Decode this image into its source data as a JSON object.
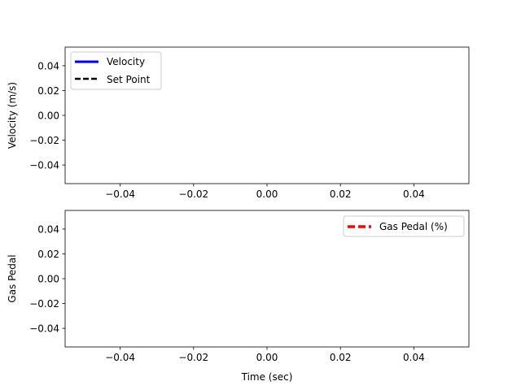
{
  "chart_data": [
    {
      "type": "line",
      "title": "",
      "xlabel": "",
      "ylabel": "Velocity (m/s)",
      "xlim": [
        -0.055,
        0.055
      ],
      "ylim": [
        -0.055,
        0.055
      ],
      "xticks": [
        -0.04,
        -0.02,
        0.0,
        0.02,
        0.04
      ],
      "yticks": [
        -0.04,
        -0.02,
        0.0,
        0.02,
        0.04
      ],
      "xtick_labels": [
        "−0.04",
        "−0.02",
        "0.00",
        "0.02",
        "0.04"
      ],
      "ytick_labels": [
        "−0.04",
        "−0.02",
        "0.00",
        "0.02",
        "0.04"
      ],
      "grid": false,
      "legend_position": "upper-left",
      "series": [
        {
          "name": "Velocity",
          "x": [],
          "y": [],
          "color": "#0000ff",
          "linestyle": "solid"
        },
        {
          "name": "Set Point",
          "x": [],
          "y": [],
          "color": "#000000",
          "linestyle": "dashed"
        }
      ]
    },
    {
      "type": "line",
      "title": "",
      "xlabel": "Time (sec)",
      "ylabel": "Gas Pedal",
      "xlim": [
        -0.055,
        0.055
      ],
      "ylim": [
        -0.055,
        0.055
      ],
      "xticks": [
        -0.04,
        -0.02,
        0.0,
        0.02,
        0.04
      ],
      "yticks": [
        -0.04,
        -0.02,
        0.0,
        0.02,
        0.04
      ],
      "xtick_labels": [
        "−0.04",
        "−0.02",
        "0.00",
        "0.02",
        "0.04"
      ],
      "ytick_labels": [
        "−0.04",
        "−0.02",
        "0.00",
        "0.02",
        "0.04"
      ],
      "grid": false,
      "legend_position": "upper-right",
      "series": [
        {
          "name": "Gas Pedal (%)",
          "x": [],
          "y": [],
          "color": "#ff0000",
          "linestyle": "dashed"
        }
      ]
    }
  ]
}
